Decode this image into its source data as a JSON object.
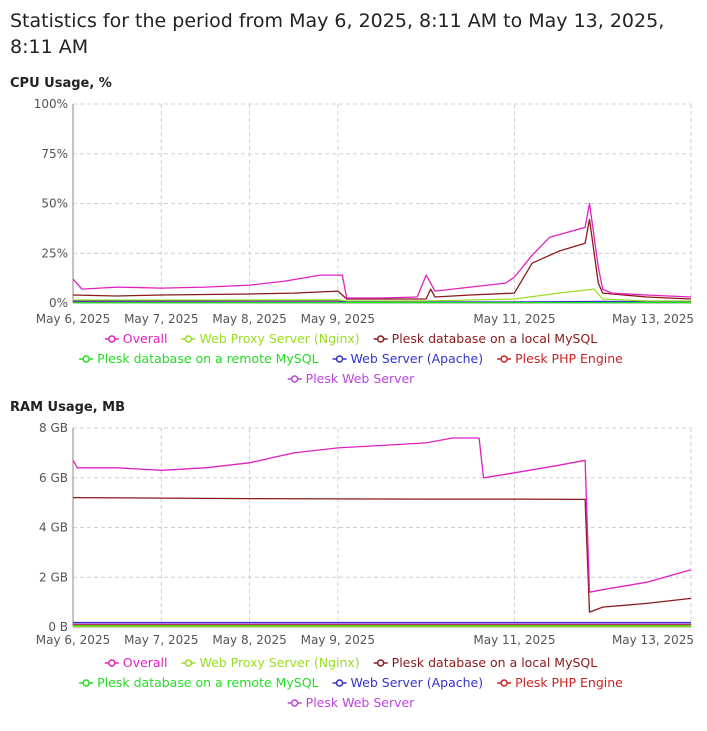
{
  "page": {
    "title": "Statistics for the period from May 6, 2025, 8:11 AM to May 13, 2025, 8:11 AM"
  },
  "chart_data": [
    {
      "type": "line",
      "title": "CPU Usage, %",
      "ylim": [
        0,
        100
      ],
      "y_ticks": [
        "0%",
        "25%",
        "50%",
        "75%",
        "100%"
      ],
      "y_tick_values": [
        0,
        25,
        50,
        75,
        100
      ],
      "x_range": [
        0,
        7
      ],
      "x_ticks": [
        "May 6, 2025",
        "May 7, 2025",
        "May 8, 2025",
        "May 9, 2025",
        "May 11, 2025",
        "May 13, 2025"
      ],
      "x_tick_values": [
        0,
        1,
        2,
        3,
        5,
        7
      ],
      "grid": true,
      "legend_position": "bottom",
      "series": [
        {
          "name": "Overall",
          "color": "#e020c0",
          "x": [
            0,
            0.1,
            0.5,
            1.0,
            1.5,
            2.0,
            2.4,
            2.8,
            3.05,
            3.1,
            3.5,
            3.9,
            4.0,
            4.1,
            4.5,
            4.9,
            5.0,
            5.2,
            5.4,
            5.8,
            5.85,
            5.95,
            6.0,
            6.1,
            6.5,
            7.0
          ],
          "values": [
            12,
            7,
            8,
            7.5,
            8,
            9,
            11,
            14,
            14,
            2.5,
            2.5,
            3,
            14,
            6,
            8,
            10,
            13,
            24,
            33,
            38,
            50,
            18,
            7,
            5,
            4,
            3
          ]
        },
        {
          "name": "Web Proxy Server (Nginx)",
          "color": "#99dd22",
          "x": [
            0,
            1,
            2,
            3,
            3.1,
            4,
            5,
            5.5,
            5.9,
            6.0,
            6.5,
            7.0
          ],
          "values": [
            1.5,
            1.5,
            1.5,
            1.6,
            1,
            1,
            2,
            5,
            7,
            2,
            1,
            1
          ]
        },
        {
          "name": "Plesk database on a local MySQL",
          "color": "#8b1a1a",
          "x": [
            0,
            0.5,
            1.0,
            2.0,
            2.5,
            3.0,
            3.1,
            3.5,
            4.0,
            4.05,
            4.1,
            4.5,
            5.0,
            5.2,
            5.5,
            5.8,
            5.85,
            5.95,
            6.0,
            6.5,
            7.0
          ],
          "values": [
            4,
            3.5,
            4,
            4.5,
            5,
            6,
            2,
            2,
            2,
            7,
            3,
            4,
            5,
            20,
            26,
            30,
            42,
            10,
            5,
            3,
            2
          ]
        },
        {
          "name": "Plesk database on a remote MySQL",
          "color": "#22dd22",
          "x": [
            0,
            7
          ],
          "values": [
            0.2,
            0.2
          ]
        },
        {
          "name": "Web Server (Apache)",
          "color": "#3333cc",
          "x": [
            0,
            3,
            3.1,
            5,
            6,
            7
          ],
          "values": [
            1,
            1.2,
            0.5,
            0.5,
            0.8,
            0.4
          ]
        },
        {
          "name": "Plesk PHP Engine",
          "color": "#cc2222",
          "x": [
            0,
            7
          ],
          "values": [
            0.3,
            0.3
          ]
        },
        {
          "name": "Plesk Web Server",
          "color": "#bb44dd",
          "x": [
            0,
            7
          ],
          "values": [
            0.5,
            0.5
          ]
        }
      ]
    },
    {
      "type": "line",
      "title": "RAM Usage, MB",
      "ylim": [
        0,
        8
      ],
      "y_ticks": [
        "0 B",
        "2 GB",
        "4 GB",
        "6 GB",
        "8 GB"
      ],
      "y_tick_values": [
        0,
        2,
        4,
        6,
        8
      ],
      "x_range": [
        0,
        7
      ],
      "x_ticks": [
        "May 6, 2025",
        "May 7, 2025",
        "May 8, 2025",
        "May 9, 2025",
        "May 11, 2025",
        "May 13, 2025"
      ],
      "x_tick_values": [
        0,
        1,
        2,
        3,
        5,
        7
      ],
      "grid": true,
      "legend_position": "bottom",
      "series": [
        {
          "name": "Overall",
          "color": "#e020c0",
          "x": [
            0,
            0.05,
            0.5,
            1.0,
            1.5,
            2.0,
            2.5,
            3.0,
            3.5,
            4.0,
            4.3,
            4.6,
            4.65,
            5.0,
            5.5,
            5.8,
            5.85,
            6.0,
            6.5,
            7.0
          ],
          "values": [
            6.7,
            6.4,
            6.4,
            6.3,
            6.4,
            6.6,
            7.0,
            7.2,
            7.3,
            7.4,
            7.6,
            7.6,
            6.0,
            6.2,
            6.5,
            6.7,
            1.4,
            1.5,
            1.8,
            2.3
          ]
        },
        {
          "name": "Web Proxy Server (Nginx)",
          "color": "#99dd22",
          "x": [
            0,
            7
          ],
          "values": [
            0.02,
            0.02
          ]
        },
        {
          "name": "Plesk database on a local MySQL",
          "color": "#8b1a1a",
          "x": [
            0,
            1,
            2,
            3,
            4,
            5,
            5.8,
            5.85,
            6.0,
            6.5,
            7.0
          ],
          "values": [
            5.2,
            5.18,
            5.16,
            5.15,
            5.14,
            5.14,
            5.13,
            0.6,
            0.8,
            0.95,
            1.15
          ]
        },
        {
          "name": "Plesk database on a remote MySQL",
          "color": "#22dd22",
          "x": [
            0,
            7
          ],
          "values": [
            0.05,
            0.05
          ]
        },
        {
          "name": "Web Server (Apache)",
          "color": "#3333cc",
          "x": [
            0,
            7
          ],
          "values": [
            0.18,
            0.18
          ]
        },
        {
          "name": "Plesk PHP Engine",
          "color": "#cc2222",
          "x": [
            0,
            7
          ],
          "values": [
            0.08,
            0.08
          ]
        },
        {
          "name": "Plesk Web Server",
          "color": "#bb44dd",
          "x": [
            0,
            7
          ],
          "values": [
            0.12,
            0.12
          ]
        }
      ]
    }
  ]
}
